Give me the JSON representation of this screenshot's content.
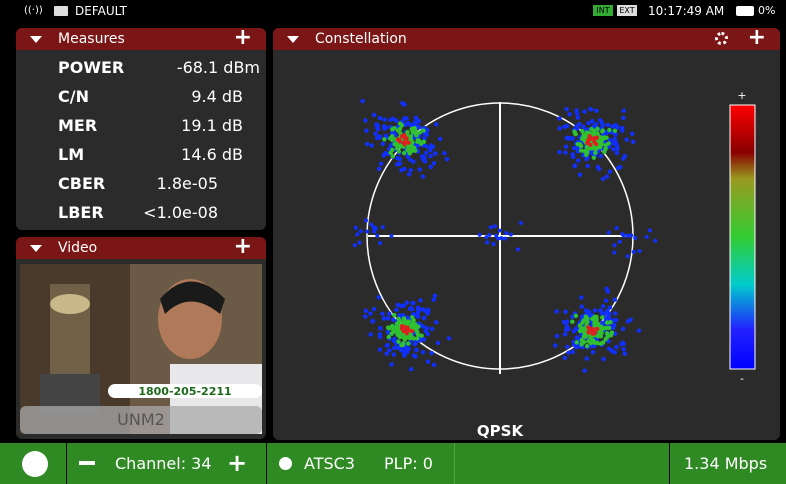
{
  "status_bar": {
    "profile": "DEFAULT",
    "badge_1": "INT",
    "badge_2": "EXT",
    "time": "10:17:49 AM",
    "battery": "0%"
  },
  "measures": {
    "title": "Measures",
    "rows": [
      [
        "POWER",
        "-68.1 dBm"
      ],
      [
        "C/N",
        "9.4 dB"
      ],
      [
        "MER",
        "19.1 dB"
      ],
      [
        "LM",
        "14.6 dB"
      ],
      [
        "CBER",
        "1.8e-05"
      ],
      [
        "LBER",
        "<1.0e-08"
      ]
    ]
  },
  "video": {
    "title": "Video",
    "phone_overlay": "1800-205-2211",
    "service_label": "UNM2"
  },
  "constellation": {
    "title": "Constellation",
    "modulation": "QPSK",
    "scale_top": "+",
    "scale_bottom": "-"
  },
  "bottom_bar": {
    "channel": "Channel: 34",
    "standard": "ATSC3",
    "plp": "PLP: 0",
    "bitrate": "1.34 Mbps"
  }
}
